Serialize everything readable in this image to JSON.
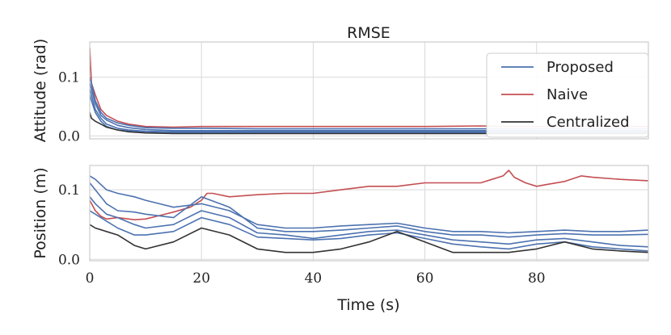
{
  "chart_data": {
    "type": "line",
    "title": "RMSE",
    "xlabel": "Time (s)",
    "xlim": [
      0,
      100
    ],
    "xticks": [
      0,
      20,
      40,
      60,
      80
    ],
    "xtick_labels": [
      "0",
      "20",
      "40",
      "60",
      "80"
    ],
    "grid": true,
    "legend": {
      "placement": "top-right",
      "entries": [
        {
          "label": "Proposed",
          "color": "#4c72b0"
        },
        {
          "label": "Naive",
          "color": "#c44e52"
        },
        {
          "label": "Centralized",
          "color": "#333333"
        }
      ]
    },
    "panels": [
      {
        "ylabel": "Attitude (rad)",
        "ylim": [
          -0.005,
          0.16
        ],
        "yticks": [
          0.0,
          0.1
        ],
        "ytick_labels": [
          "0.0",
          "0.1"
        ],
        "series": [
          {
            "group": "Naive",
            "color": "#c44e52",
            "x": [
              0,
              0.3,
              1,
              2,
              3,
              5,
              7,
              10,
              15,
              20,
              30,
              40,
              50,
              60,
              70,
              75,
              80,
              90,
              100
            ],
            "y": [
              0.15,
              0.09,
              0.07,
              0.045,
              0.035,
              0.025,
              0.02,
              0.016,
              0.015,
              0.016,
              0.016,
              0.016,
              0.016,
              0.016,
              0.017,
              0.016,
              0.016,
              0.016,
              0.016
            ]
          },
          {
            "group": "Proposed",
            "color": "#4c72b0",
            "x": [
              0,
              0.3,
              1,
              2,
              3,
              5,
              7,
              10,
              15,
              20,
              30,
              40,
              50,
              60,
              70,
              80,
              90,
              100
            ],
            "y": [
              0.1,
              0.09,
              0.06,
              0.04,
              0.03,
              0.022,
              0.018,
              0.014,
              0.013,
              0.013,
              0.012,
              0.012,
              0.012,
              0.012,
              0.012,
              0.012,
              0.012,
              0.012
            ]
          },
          {
            "group": "Proposed",
            "color": "#4c72b0",
            "x": [
              0,
              0.3,
              1,
              2,
              3,
              5,
              7,
              10,
              15,
              20,
              30,
              40,
              50,
              60,
              70,
              80,
              90,
              100
            ],
            "y": [
              0.09,
              0.08,
              0.055,
              0.035,
              0.027,
              0.018,
              0.014,
              0.011,
              0.009,
              0.009,
              0.009,
              0.009,
              0.009,
              0.009,
              0.009,
              0.009,
              0.009,
              0.009
            ]
          },
          {
            "group": "Proposed",
            "color": "#4c72b0",
            "x": [
              0,
              0.3,
              1,
              2,
              3,
              5,
              7,
              10,
              15,
              20,
              30,
              40,
              50,
              60,
              70,
              80,
              90,
              100
            ],
            "y": [
              0.08,
              0.07,
              0.045,
              0.03,
              0.02,
              0.013,
              0.01,
              0.008,
              0.007,
              0.007,
              0.007,
              0.007,
              0.007,
              0.007,
              0.007,
              0.007,
              0.007,
              0.007
            ]
          },
          {
            "group": "Proposed",
            "color": "#4c72b0",
            "x": [
              0,
              0.3,
              1,
              2,
              3,
              5,
              7,
              10,
              15,
              20,
              30,
              40,
              50,
              60,
              70,
              80,
              90,
              100
            ],
            "y": [
              0.07,
              0.06,
              0.04,
              0.025,
              0.016,
              0.01,
              0.008,
              0.006,
              0.005,
              0.005,
              0.005,
              0.005,
              0.005,
              0.005,
              0.005,
              0.005,
              0.005,
              0.005
            ]
          },
          {
            "group": "Centralized",
            "color": "#333333",
            "x": [
              0,
              0.3,
              1,
              2,
              3,
              5,
              7,
              10,
              15,
              20,
              30,
              40,
              50,
              60,
              70,
              80,
              90,
              100
            ],
            "y": [
              0.04,
              0.03,
              0.025,
              0.02,
              0.015,
              0.01,
              0.007,
              0.005,
              0.004,
              0.004,
              0.004,
              0.004,
              0.004,
              0.004,
              0.004,
              0.004,
              0.004,
              0.004
            ]
          }
        ]
      },
      {
        "ylabel": "Position (m)",
        "ylim": [
          -0.002,
          0.135
        ],
        "yticks": [
          0.0,
          0.1
        ],
        "ytick_labels": [
          "0.0",
          "0.1"
        ],
        "series": [
          {
            "group": "Naive",
            "color": "#c44e52",
            "x": [
              0,
              1,
              2,
              3,
              5,
              8,
              10,
              12,
              15,
              18,
              20,
              21,
              22,
              25,
              30,
              35,
              40,
              45,
              50,
              55,
              60,
              65,
              70,
              72,
              74,
              75,
              76,
              78,
              80,
              82,
              85,
              88,
              90,
              95,
              100
            ],
            "y": [
              0.085,
              0.07,
              0.062,
              0.058,
              0.06,
              0.057,
              0.058,
              0.062,
              0.068,
              0.075,
              0.085,
              0.095,
              0.095,
              0.09,
              0.093,
              0.095,
              0.095,
              0.1,
              0.105,
              0.105,
              0.11,
              0.11,
              0.11,
              0.115,
              0.12,
              0.128,
              0.118,
              0.11,
              0.105,
              0.108,
              0.112,
              0.12,
              0.118,
              0.115,
              0.113
            ]
          },
          {
            "group": "Proposed",
            "color": "#4c72b0",
            "x": [
              0,
              1,
              3,
              5,
              8,
              10,
              15,
              20,
              25,
              30,
              35,
              40,
              45,
              50,
              55,
              60,
              65,
              70,
              75,
              80,
              85,
              90,
              95,
              100
            ],
            "y": [
              0.12,
              0.115,
              0.1,
              0.095,
              0.09,
              0.085,
              0.075,
              0.08,
              0.07,
              0.05,
              0.045,
              0.045,
              0.048,
              0.05,
              0.052,
              0.045,
              0.04,
              0.04,
              0.038,
              0.04,
              0.042,
              0.04,
              0.04,
              0.042
            ]
          },
          {
            "group": "Proposed",
            "color": "#4c72b0",
            "x": [
              0,
              1,
              3,
              5,
              8,
              10,
              15,
              20,
              25,
              30,
              35,
              40,
              45,
              50,
              55,
              60,
              65,
              70,
              75,
              80,
              85,
              90,
              95,
              100
            ],
            "y": [
              0.11,
              0.1,
              0.08,
              0.07,
              0.068,
              0.065,
              0.06,
              0.09,
              0.075,
              0.045,
              0.04,
              0.04,
              0.042,
              0.045,
              0.048,
              0.04,
              0.035,
              0.035,
              0.032,
              0.035,
              0.037,
              0.035,
              0.035,
              0.036
            ]
          },
          {
            "group": "Proposed",
            "color": "#4c72b0",
            "x": [
              0,
              1,
              3,
              5,
              8,
              10,
              15,
              20,
              25,
              30,
              35,
              40,
              45,
              50,
              55,
              60,
              65,
              70,
              75,
              80,
              85,
              90,
              95,
              100
            ],
            "y": [
              0.09,
              0.08,
              0.065,
              0.06,
              0.05,
              0.045,
              0.05,
              0.07,
              0.06,
              0.038,
              0.035,
              0.03,
              0.035,
              0.04,
              0.042,
              0.035,
              0.028,
              0.025,
              0.022,
              0.028,
              0.03,
              0.025,
              0.02,
              0.018
            ]
          },
          {
            "group": "Proposed",
            "color": "#4c72b0",
            "x": [
              0,
              1,
              3,
              5,
              8,
              10,
              15,
              20,
              25,
              30,
              35,
              40,
              45,
              50,
              55,
              60,
              65,
              70,
              75,
              80,
              85,
              90,
              95,
              100
            ],
            "y": [
              0.07,
              0.065,
              0.055,
              0.045,
              0.035,
              0.035,
              0.04,
              0.06,
              0.05,
              0.032,
              0.03,
              0.028,
              0.03,
              0.035,
              0.038,
              0.03,
              0.022,
              0.018,
              0.015,
              0.022,
              0.025,
              0.018,
              0.015,
              0.012
            ]
          },
          {
            "group": "Centralized",
            "color": "#333333",
            "x": [
              0,
              1,
              3,
              5,
              8,
              10,
              15,
              20,
              25,
              30,
              35,
              40,
              45,
              50,
              55,
              60,
              65,
              70,
              75,
              80,
              85,
              90,
              95,
              100
            ],
            "y": [
              0.05,
              0.045,
              0.04,
              0.035,
              0.02,
              0.015,
              0.025,
              0.045,
              0.035,
              0.015,
              0.01,
              0.01,
              0.015,
              0.025,
              0.04,
              0.025,
              0.01,
              0.01,
              0.01,
              0.015,
              0.025,
              0.015,
              0.012,
              0.01
            ]
          }
        ]
      }
    ]
  }
}
